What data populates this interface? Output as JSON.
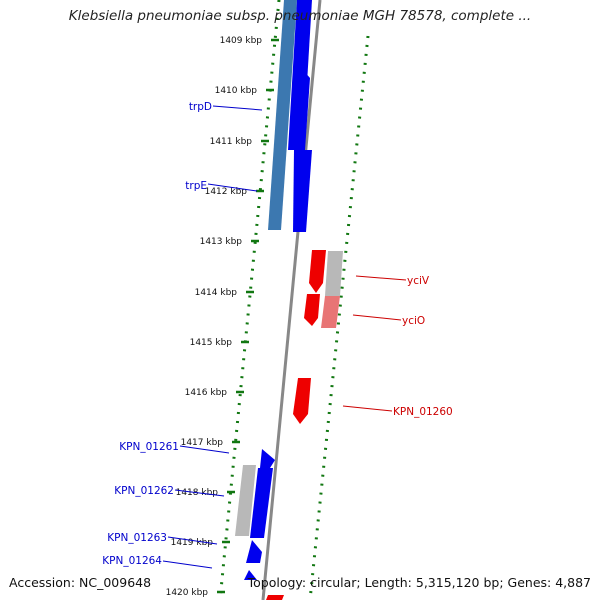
{
  "title": "Klebsiella pneumoniae subsp. pneumoniae MGH 78578, complete ...",
  "accession": "Accession: NC_009648",
  "summary": "Topology: circular; Length: 5,315,120 bp; Genes: 4,887",
  "kbp_ticks": [
    "1409 kbp",
    "1410 kbp",
    "1411 kbp",
    "1412 kbp",
    "1413 kbp",
    "1414 kbp",
    "1415 kbp",
    "1416 kbp",
    "1417 kbp",
    "1418 kbp",
    "1419 kbp",
    "1420 kbp"
  ],
  "forward_genes": [
    {
      "label": "trpD"
    },
    {
      "label": "trpE"
    },
    {
      "label": "KPN_01261"
    },
    {
      "label": "KPN_01262"
    },
    {
      "label": "KPN_01263"
    },
    {
      "label": "KPN_01264"
    }
  ],
  "reverse_genes": [
    {
      "label": "yciV"
    },
    {
      "label": "yciO"
    },
    {
      "label": "KPN_01260"
    }
  ],
  "colors": {
    "forward": "#0000ee",
    "reverse": "#ee0000",
    "forward_label": "#0000cc",
    "reverse_label": "#cc0000",
    "tick": "#117711",
    "track_line": "#888888",
    "grey_block": "#b8b8b8",
    "blue_block": "#3c78b0"
  }
}
